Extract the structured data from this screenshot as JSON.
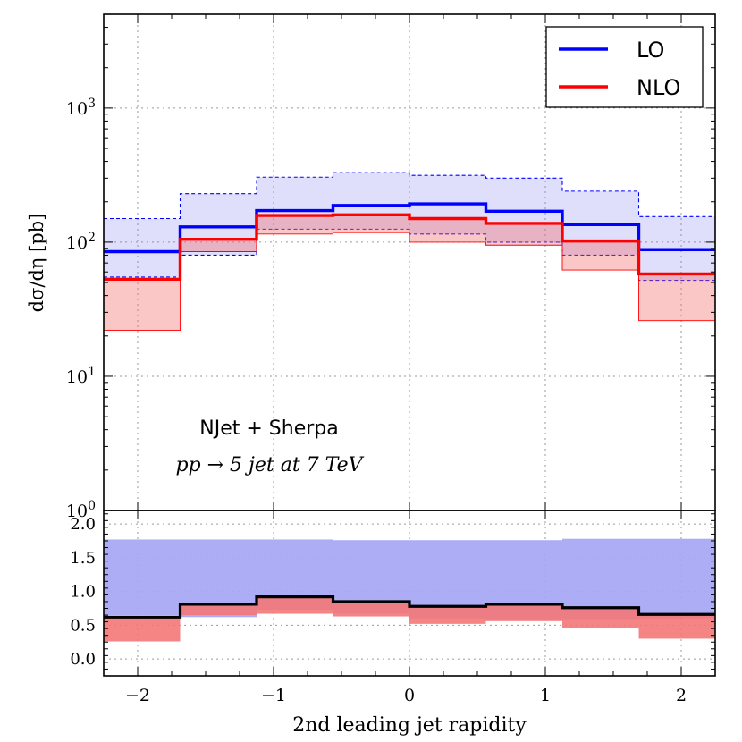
{
  "chart_data": {
    "type": "line",
    "bin_edges": [
      -2.25,
      -1.6875,
      -1.125,
      -0.5625,
      0.0,
      0.5625,
      1.125,
      1.6875,
      2.25
    ],
    "xlabel": "2nd leading jet rapidity",
    "xlim": [
      -2.25,
      2.25
    ],
    "xticks": [
      -2,
      -1,
      0,
      1,
      2
    ],
    "xtick_labels": [
      "−2",
      "−1",
      "0",
      "1",
      "2"
    ],
    "main_panel": {
      "ylabel": "dσ/dη [pb]",
      "yscale": "log",
      "ylim": [
        1,
        5000
      ],
      "yticks": [
        1,
        10,
        100,
        1000
      ],
      "ytick_labels": [
        "10⁰",
        "10¹",
        "10²",
        "10³"
      ],
      "series": [
        {
          "name": "LO",
          "color": "#0000ff",
          "values": [
            85,
            130,
            172,
            188,
            193,
            170,
            135,
            88
          ],
          "band_lower": [
            55,
            80,
            125,
            125,
            115,
            100,
            80,
            52
          ],
          "band_upper": [
            150,
            230,
            305,
            330,
            315,
            300,
            240,
            155
          ]
        },
        {
          "name": "NLO",
          "color": "#ff0000",
          "values": [
            53,
            105,
            158,
            160,
            150,
            138,
            102,
            58
          ],
          "band_lower": [
            22,
            85,
            115,
            118,
            100,
            95,
            62,
            26
          ],
          "band_upper": [
            53,
            105,
            158,
            160,
            150,
            138,
            102,
            58
          ]
        }
      ],
      "legend": {
        "position": "top-right",
        "entries": [
          "LO",
          "NLO"
        ]
      },
      "annotation_lines": [
        "NJet + Sherpa",
        "pp → 5 jet at 7 TeV"
      ]
    },
    "ratio_panel": {
      "ylim": [
        -0.25,
        2.2
      ],
      "yticks": [
        0.0,
        0.5,
        1.0,
        1.5,
        2.0
      ],
      "ytick_labels": [
        "0.0",
        "0.5",
        "1.0",
        "1.5",
        "2.0"
      ],
      "lo_band": {
        "color": "#a9a9f5",
        "lower": [
          0.65,
          0.62,
          0.73,
          0.67,
          0.6,
          0.59,
          0.59,
          0.6
        ],
        "upper": [
          1.77,
          1.77,
          1.77,
          1.76,
          1.76,
          1.76,
          1.78,
          1.78
        ]
      },
      "nlo_band": {
        "color": "#f47878",
        "lower": [
          0.26,
          0.65,
          0.67,
          0.63,
          0.52,
          0.56,
          0.46,
          0.3
        ],
        "upper": [
          0.62,
          0.81,
          0.92,
          0.85,
          0.78,
          0.81,
          0.76,
          0.66
        ]
      },
      "ratio": {
        "color": "#000000",
        "values": [
          0.62,
          0.81,
          0.92,
          0.85,
          0.78,
          0.81,
          0.76,
          0.66
        ]
      }
    },
    "grid": true
  }
}
